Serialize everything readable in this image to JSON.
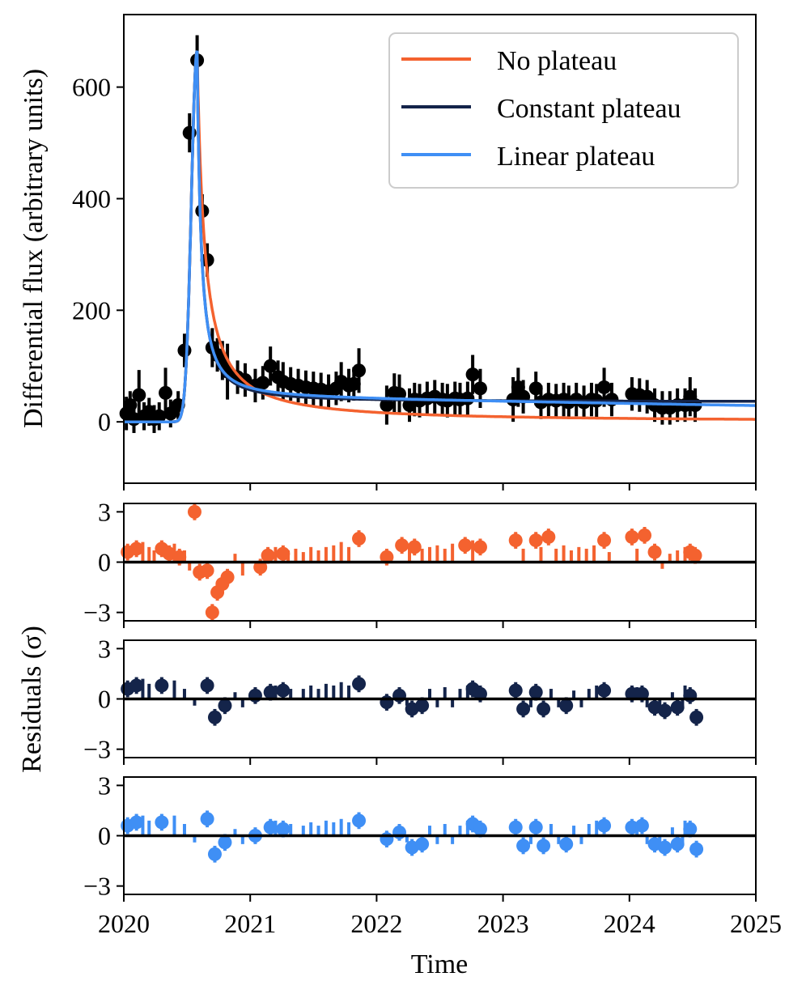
{
  "chart_data": {
    "type": "scatter",
    "xlabel": "Time",
    "x_ticks": [
      "2020",
      "2021",
      "2022",
      "2023",
      "2024",
      "2025"
    ],
    "xlim": [
      2020,
      2025
    ],
    "colors": {
      "no_plateau": "#f4622f",
      "constant_plateau": "#14244a",
      "linear_plateau": "#3f8ff5",
      "data": "#000000"
    },
    "flux_panel": {
      "ylabel": "Differential flux (arbitrary units)",
      "ylim": [
        -110,
        730
      ],
      "y_ticks": [
        "0",
        "200",
        "400",
        "600"
      ],
      "y_tick_values": [
        0,
        200,
        400,
        600
      ],
      "legend": [
        "No plateau",
        "Constant plateau",
        "Linear plateau"
      ],
      "legend_position": "top-right",
      "data_points": [
        [
          2020.02,
          15,
          30
        ],
        [
          2020.05,
          30,
          25
        ],
        [
          2020.08,
          5,
          25
        ],
        [
          2020.12,
          48,
          45
        ],
        [
          2020.16,
          10,
          25
        ],
        [
          2020.2,
          18,
          25
        ],
        [
          2020.24,
          5,
          25
        ],
        [
          2020.28,
          10,
          25
        ],
        [
          2020.33,
          52,
          45
        ],
        [
          2020.37,
          15,
          25
        ],
        [
          2020.43,
          30,
          25
        ],
        [
          2020.48,
          128,
          30
        ],
        [
          2020.52,
          518,
          35
        ],
        [
          2020.58,
          648,
          45
        ],
        [
          2020.62,
          378,
          30
        ],
        [
          2020.66,
          290,
          30
        ],
        [
          2020.7,
          133,
          35
        ],
        [
          2020.74,
          120,
          30
        ],
        [
          2020.78,
          110,
          35
        ],
        [
          2020.82,
          90,
          50
        ],
        [
          2020.9,
          80,
          30
        ],
        [
          2020.96,
          75,
          30
        ],
        [
          2021.04,
          65,
          30
        ],
        [
          2021.1,
          70,
          30
        ],
        [
          2021.16,
          100,
          35
        ],
        [
          2021.22,
          80,
          30
        ],
        [
          2021.26,
          72,
          35
        ],
        [
          2021.32,
          68,
          30
        ],
        [
          2021.38,
          65,
          30
        ],
        [
          2021.44,
          62,
          30
        ],
        [
          2021.5,
          60,
          30
        ],
        [
          2021.56,
          58,
          30
        ],
        [
          2021.62,
          55,
          30
        ],
        [
          2021.68,
          60,
          30
        ],
        [
          2021.72,
          72,
          35
        ],
        [
          2021.78,
          65,
          30
        ],
        [
          2021.82,
          68,
          30
        ],
        [
          2021.86,
          92,
          40
        ],
        [
          2022.08,
          30,
          35
        ],
        [
          2022.14,
          52,
          35
        ],
        [
          2022.18,
          50,
          35
        ],
        [
          2022.26,
          30,
          30
        ],
        [
          2022.3,
          40,
          30
        ],
        [
          2022.34,
          38,
          30
        ],
        [
          2022.4,
          42,
          30
        ],
        [
          2022.46,
          45,
          30
        ],
        [
          2022.52,
          40,
          30
        ],
        [
          2022.56,
          38,
          30
        ],
        [
          2022.62,
          42,
          30
        ],
        [
          2022.66,
          40,
          30
        ],
        [
          2022.72,
          42,
          30
        ],
        [
          2022.76,
          85,
          35
        ],
        [
          2022.82,
          60,
          35
        ],
        [
          2023.08,
          40,
          40
        ],
        [
          2023.12,
          62,
          35
        ],
        [
          2023.16,
          45,
          30
        ],
        [
          2023.26,
          60,
          30
        ],
        [
          2023.3,
          35,
          30
        ],
        [
          2023.36,
          40,
          30
        ],
        [
          2023.42,
          38,
          30
        ],
        [
          2023.48,
          40,
          30
        ],
        [
          2023.52,
          35,
          30
        ],
        [
          2023.58,
          40,
          30
        ],
        [
          2023.64,
          35,
          30
        ],
        [
          2023.7,
          40,
          30
        ],
        [
          2023.74,
          38,
          30
        ],
        [
          2023.8,
          62,
          35
        ],
        [
          2023.86,
          40,
          30
        ],
        [
          2024.02,
          50,
          30
        ],
        [
          2024.08,
          48,
          30
        ],
        [
          2024.14,
          45,
          30
        ],
        [
          2024.2,
          30,
          30
        ],
        [
          2024.26,
          25,
          30
        ],
        [
          2024.32,
          25,
          30
        ],
        [
          2024.38,
          30,
          30
        ],
        [
          2024.44,
          30,
          30
        ],
        [
          2024.48,
          45,
          35
        ],
        [
          2024.52,
          30,
          30
        ]
      ]
    },
    "residual_panels": [
      {
        "name": "no-plateau",
        "ylim": [
          -3.5,
          3.5
        ],
        "y_ticks": [
          "−3",
          "0",
          "3"
        ],
        "y_tick_values": [
          -3,
          0,
          3
        ],
        "points": [
          [
            2020.03,
            0.6
          ],
          [
            2020.1,
            0.8
          ],
          [
            2020.3,
            0.8
          ],
          [
            2020.36,
            0.5
          ],
          [
            2020.44,
            0.3
          ],
          [
            2020.56,
            3.0
          ],
          [
            2020.6,
            -0.6
          ],
          [
            2020.66,
            -0.5
          ],
          [
            2020.7,
            -3.0
          ],
          [
            2020.74,
            -1.8
          ],
          [
            2020.78,
            -1.3
          ],
          [
            2020.82,
            -0.9
          ],
          [
            2021.08,
            -0.3
          ],
          [
            2021.14,
            0.4
          ],
          [
            2021.26,
            0.5
          ],
          [
            2021.86,
            1.4
          ],
          [
            2022.08,
            0.3
          ],
          [
            2022.2,
            1.0
          ],
          [
            2022.3,
            0.9
          ],
          [
            2022.7,
            1.0
          ],
          [
            2022.82,
            0.9
          ],
          [
            2023.1,
            1.3
          ],
          [
            2023.26,
            1.3
          ],
          [
            2023.36,
            1.5
          ],
          [
            2023.8,
            1.3
          ],
          [
            2024.02,
            1.5
          ],
          [
            2024.12,
            1.6
          ],
          [
            2024.2,
            0.6
          ],
          [
            2024.48,
            0.6
          ],
          [
            2024.52,
            0.4
          ]
        ],
        "bars": [
          [
            2020.15,
            1.2
          ],
          [
            2020.2,
            0.9
          ],
          [
            2020.24,
            0.7
          ],
          [
            2020.4,
            1.1
          ],
          [
            2020.48,
            0.7
          ],
          [
            2020.52,
            -0.5
          ],
          [
            2020.88,
            0.5
          ],
          [
            2020.94,
            -0.8
          ],
          [
            2021.2,
            0.9
          ],
          [
            2021.3,
            0.7
          ],
          [
            2021.36,
            0.8
          ],
          [
            2021.42,
            0.6
          ],
          [
            2021.48,
            0.9
          ],
          [
            2021.54,
            0.7
          ],
          [
            2021.6,
            0.9
          ],
          [
            2021.66,
            1.0
          ],
          [
            2021.72,
            1.2
          ],
          [
            2021.78,
            0.9
          ],
          [
            2022.26,
            1.1
          ],
          [
            2022.36,
            0.8
          ],
          [
            2022.42,
            0.9
          ],
          [
            2022.48,
            1.0
          ],
          [
            2022.54,
            0.8
          ],
          [
            2022.6,
            1.1
          ],
          [
            2022.76,
            1.3
          ],
          [
            2023.16,
            0.8
          ],
          [
            2023.3,
            0.9
          ],
          [
            2023.42,
            0.8
          ],
          [
            2023.48,
            1.0
          ],
          [
            2023.54,
            0.7
          ],
          [
            2023.6,
            0.9
          ],
          [
            2023.66,
            0.8
          ],
          [
            2023.72,
            1.0
          ],
          [
            2023.84,
            0.6
          ],
          [
            2024.06,
            0.8
          ],
          [
            2024.26,
            -0.4
          ],
          [
            2024.32,
            0.5
          ],
          [
            2024.38,
            0.7
          ],
          [
            2024.44,
            0.9
          ]
        ]
      },
      {
        "name": "constant-plateau",
        "ylim": [
          -3.5,
          3.5
        ],
        "y_ticks": [
          "−3",
          "0",
          "3"
        ],
        "y_tick_values": [
          -3,
          0,
          3
        ],
        "points": [
          [
            2020.03,
            0.6
          ],
          [
            2020.1,
            0.8
          ],
          [
            2020.3,
            0.8
          ],
          [
            2020.66,
            0.8
          ],
          [
            2020.72,
            -1.1
          ],
          [
            2020.8,
            -0.4
          ],
          [
            2021.04,
            0.2
          ],
          [
            2021.16,
            0.4
          ],
          [
            2021.26,
            0.5
          ],
          [
            2021.86,
            0.9
          ],
          [
            2022.08,
            -0.2
          ],
          [
            2022.18,
            0.2
          ],
          [
            2022.28,
            -0.6
          ],
          [
            2022.36,
            -0.4
          ],
          [
            2022.76,
            0.6
          ],
          [
            2022.82,
            0.3
          ],
          [
            2023.1,
            0.5
          ],
          [
            2023.16,
            -0.6
          ],
          [
            2023.26,
            0.4
          ],
          [
            2023.32,
            -0.6
          ],
          [
            2023.5,
            -0.4
          ],
          [
            2023.8,
            0.5
          ],
          [
            2024.02,
            0.3
          ],
          [
            2024.1,
            0.3
          ],
          [
            2024.2,
            -0.5
          ],
          [
            2024.28,
            -0.7
          ],
          [
            2024.38,
            -0.5
          ],
          [
            2024.48,
            0.2
          ],
          [
            2024.53,
            -1.1
          ]
        ],
        "bars": [
          [
            2020.15,
            1.2
          ],
          [
            2020.2,
            0.9
          ],
          [
            2020.4,
            1.1
          ],
          [
            2020.48,
            0.6
          ],
          [
            2020.56,
            -0.4
          ],
          [
            2020.88,
            0.4
          ],
          [
            2020.94,
            -0.5
          ],
          [
            2021.2,
            0.8
          ],
          [
            2021.32,
            0.6
          ],
          [
            2021.42,
            0.6
          ],
          [
            2021.48,
            0.8
          ],
          [
            2021.54,
            0.6
          ],
          [
            2021.6,
            0.9
          ],
          [
            2021.66,
            0.8
          ],
          [
            2021.72,
            1.0
          ],
          [
            2021.78,
            0.8
          ],
          [
            2022.24,
            -0.4
          ],
          [
            2022.42,
            0.6
          ],
          [
            2022.48,
            -0.5
          ],
          [
            2022.54,
            0.7
          ],
          [
            2022.6,
            -0.5
          ],
          [
            2022.66,
            0.6
          ],
          [
            2022.72,
            0.8
          ],
          [
            2023.22,
            -0.5
          ],
          [
            2023.38,
            0.6
          ],
          [
            2023.44,
            -0.5
          ],
          [
            2023.56,
            0.5
          ],
          [
            2023.62,
            -0.5
          ],
          [
            2023.68,
            0.6
          ],
          [
            2023.74,
            0.8
          ],
          [
            2024.06,
            0.7
          ],
          [
            2024.14,
            -0.5
          ],
          [
            2024.24,
            -0.8
          ],
          [
            2024.34,
            0.4
          ],
          [
            2024.42,
            -0.6
          ],
          [
            2024.44,
            0.8
          ]
        ]
      },
      {
        "name": "linear-plateau",
        "ylim": [
          -3.5,
          3.5
        ],
        "y_ticks": [
          "−3",
          "0",
          "3"
        ],
        "y_tick_values": [
          -3,
          0,
          3
        ],
        "points": [
          [
            2020.03,
            0.6
          ],
          [
            2020.1,
            0.8
          ],
          [
            2020.3,
            0.8
          ],
          [
            2020.66,
            1.0
          ],
          [
            2020.72,
            -1.1
          ],
          [
            2020.8,
            -0.4
          ],
          [
            2021.04,
            0.0
          ],
          [
            2021.16,
            0.5
          ],
          [
            2021.26,
            0.4
          ],
          [
            2021.86,
            0.9
          ],
          [
            2022.08,
            -0.2
          ],
          [
            2022.18,
            0.2
          ],
          [
            2022.28,
            -0.7
          ],
          [
            2022.36,
            -0.5
          ],
          [
            2022.76,
            0.7
          ],
          [
            2022.82,
            0.4
          ],
          [
            2023.1,
            0.5
          ],
          [
            2023.16,
            -0.6
          ],
          [
            2023.26,
            0.5
          ],
          [
            2023.32,
            -0.6
          ],
          [
            2023.5,
            -0.5
          ],
          [
            2023.8,
            0.6
          ],
          [
            2024.02,
            0.5
          ],
          [
            2024.1,
            0.6
          ],
          [
            2024.2,
            -0.5
          ],
          [
            2024.28,
            -0.7
          ],
          [
            2024.38,
            -0.5
          ],
          [
            2024.48,
            0.4
          ],
          [
            2024.53,
            -0.8
          ]
        ],
        "bars": [
          [
            2020.15,
            1.2
          ],
          [
            2020.2,
            0.9
          ],
          [
            2020.4,
            1.2
          ],
          [
            2020.48,
            0.7
          ],
          [
            2020.56,
            -0.4
          ],
          [
            2020.88,
            0.4
          ],
          [
            2020.94,
            -0.5
          ],
          [
            2021.2,
            0.9
          ],
          [
            2021.32,
            0.7
          ],
          [
            2021.42,
            0.6
          ],
          [
            2021.48,
            0.8
          ],
          [
            2021.54,
            0.6
          ],
          [
            2021.6,
            0.9
          ],
          [
            2021.66,
            0.8
          ],
          [
            2021.72,
            1.0
          ],
          [
            2021.78,
            0.8
          ],
          [
            2022.24,
            -0.4
          ],
          [
            2022.42,
            0.6
          ],
          [
            2022.48,
            -0.5
          ],
          [
            2022.54,
            0.7
          ],
          [
            2022.6,
            -0.5
          ],
          [
            2022.66,
            0.6
          ],
          [
            2022.72,
            0.9
          ],
          [
            2023.22,
            -0.5
          ],
          [
            2023.38,
            0.7
          ],
          [
            2023.44,
            -0.5
          ],
          [
            2023.56,
            0.6
          ],
          [
            2023.62,
            -0.5
          ],
          [
            2023.68,
            0.7
          ],
          [
            2023.74,
            0.9
          ],
          [
            2024.06,
            0.8
          ],
          [
            2024.14,
            -0.5
          ],
          [
            2024.24,
            -0.8
          ],
          [
            2024.34,
            0.5
          ],
          [
            2024.42,
            -0.6
          ],
          [
            2024.44,
            0.9
          ]
        ]
      }
    ],
    "residuals_ylabel": "Residuals (σ)"
  }
}
